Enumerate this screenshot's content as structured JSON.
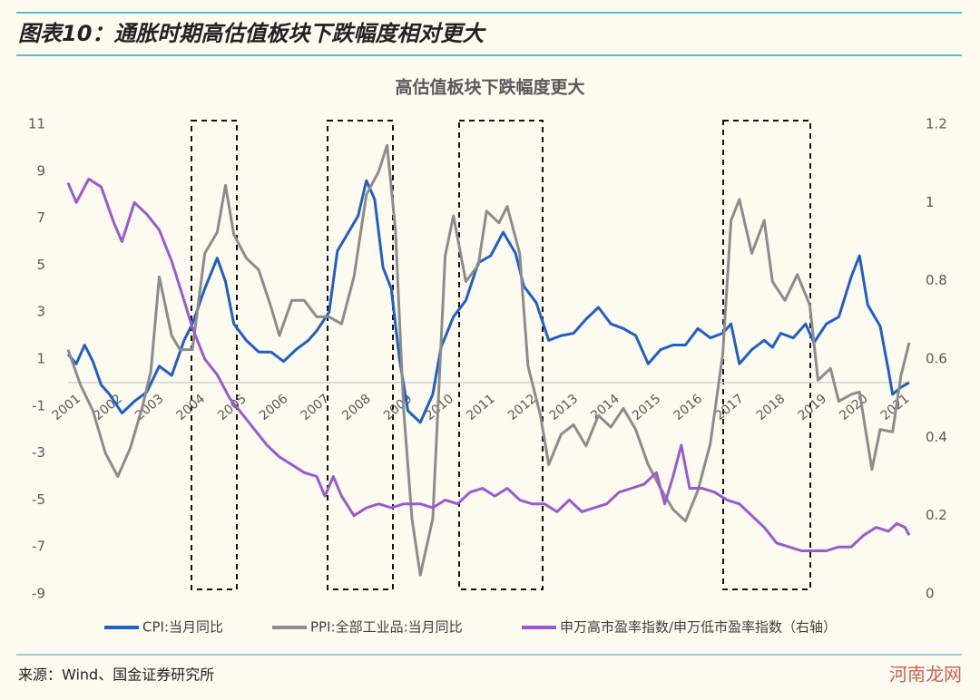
{
  "header": {
    "title": "图表10：通胀时期高估值板块下跌幅度相对更大"
  },
  "chart_data": {
    "type": "line",
    "title": "高估值板块下跌幅度更大",
    "xlim": [
      2001,
      2021.3
    ],
    "xticks": [
      2001,
      2002,
      2003,
      2004,
      2005,
      2006,
      2007,
      2008,
      2009,
      2010,
      2011,
      2012,
      2013,
      2014,
      2015,
      2016,
      2017,
      2018,
      2019,
      2020,
      2021
    ],
    "ylim": [
      -9,
      11
    ],
    "yticks": [
      11,
      9,
      7,
      5,
      3,
      1,
      -1,
      -3,
      -5,
      -7,
      -9
    ],
    "y2lim": [
      0,
      1.2
    ],
    "y2ticks": [
      1.2,
      1,
      0.8,
      0.6,
      0.4,
      0.2,
      0
    ],
    "series": [
      {
        "name": "CPI:当月同比",
        "color": "#1f5fc8",
        "x": [
          2001.0,
          2001.2,
          2001.4,
          2001.6,
          2001.8,
          2002.0,
          2002.3,
          2002.6,
          2002.9,
          2003.2,
          2003.5,
          2003.8,
          2004.0,
          2004.3,
          2004.6,
          2004.8,
          2005.0,
          2005.3,
          2005.6,
          2005.9,
          2006.2,
          2006.5,
          2006.8,
          2007.0,
          2007.3,
          2007.5,
          2007.8,
          2008.0,
          2008.2,
          2008.4,
          2008.6,
          2008.8,
          2009.0,
          2009.2,
          2009.5,
          2009.8,
          2010.0,
          2010.3,
          2010.6,
          2010.9,
          2011.2,
          2011.5,
          2011.8,
          2012.0,
          2012.3,
          2012.6,
          2012.9,
          2013.2,
          2013.5,
          2013.8,
          2014.1,
          2014.4,
          2014.7,
          2015.0,
          2015.3,
          2015.6,
          2015.9,
          2016.2,
          2016.5,
          2016.8,
          2017.0,
          2017.2,
          2017.5,
          2017.8,
          2018.0,
          2018.2,
          2018.5,
          2018.8,
          2019.0,
          2019.3,
          2019.6,
          2019.9,
          2020.1,
          2020.3,
          2020.6,
          2020.8,
          2020.9,
          2021.1,
          2021.3
        ],
        "values": [
          1.2,
          0.8,
          1.6,
          0.9,
          -0.1,
          -0.5,
          -1.3,
          -0.8,
          -0.4,
          0.7,
          0.3,
          1.8,
          2.5,
          4.0,
          5.3,
          4.3,
          2.5,
          1.8,
          1.3,
          1.3,
          0.9,
          1.4,
          1.8,
          2.2,
          3.0,
          5.6,
          6.5,
          7.1,
          8.6,
          7.8,
          4.9,
          4.0,
          1.0,
          -1.2,
          -1.7,
          -0.5,
          1.5,
          2.8,
          3.5,
          5.1,
          5.4,
          6.4,
          5.5,
          4.1,
          3.4,
          1.8,
          2.0,
          2.1,
          2.7,
          3.2,
          2.5,
          2.3,
          2.0,
          0.8,
          1.4,
          1.6,
          1.6,
          2.3,
          1.9,
          2.1,
          2.5,
          0.8,
          1.4,
          1.8,
          1.5,
          2.1,
          1.9,
          2.5,
          1.7,
          2.5,
          2.8,
          4.5,
          5.4,
          3.3,
          2.4,
          0.5,
          -0.5,
          -0.2,
          0.0
        ]
      },
      {
        "name": "PPI:全部工业品:当月同比",
        "color": "#8c8c8c",
        "x": [
          2001.0,
          2001.3,
          2001.6,
          2001.9,
          2002.2,
          2002.5,
          2002.8,
          2003.0,
          2003.2,
          2003.5,
          2003.7,
          2004.0,
          2004.3,
          2004.6,
          2004.8,
          2005.0,
          2005.3,
          2005.6,
          2005.9,
          2006.1,
          2006.4,
          2006.7,
          2007.0,
          2007.3,
          2007.6,
          2007.9,
          2008.2,
          2008.5,
          2008.7,
          2008.9,
          2009.1,
          2009.3,
          2009.5,
          2009.8,
          2010.1,
          2010.3,
          2010.6,
          2010.9,
          2011.1,
          2011.4,
          2011.6,
          2011.9,
          2012.1,
          2012.4,
          2012.6,
          2012.9,
          2013.2,
          2013.5,
          2013.8,
          2014.1,
          2014.4,
          2014.7,
          2015.0,
          2015.3,
          2015.6,
          2015.9,
          2016.2,
          2016.5,
          2016.8,
          2017.0,
          2017.2,
          2017.5,
          2017.8,
          2018.0,
          2018.3,
          2018.6,
          2018.9,
          2019.1,
          2019.4,
          2019.6,
          2019.9,
          2020.1,
          2020.4,
          2020.6,
          2020.9,
          2021.1,
          2021.3
        ],
        "values": [
          1.4,
          -0.1,
          -1.2,
          -3.0,
          -4.0,
          -2.8,
          -1.0,
          0.5,
          4.5,
          2.0,
          1.4,
          1.4,
          5.5,
          6.4,
          8.4,
          6.3,
          5.3,
          4.8,
          3.2,
          2.0,
          3.5,
          3.5,
          2.8,
          2.8,
          2.5,
          4.5,
          8.0,
          9.0,
          10.1,
          6.5,
          -1.2,
          -5.8,
          -8.2,
          -5.8,
          5.4,
          7.1,
          4.3,
          5.0,
          7.3,
          6.8,
          7.5,
          5.5,
          0.7,
          -1.4,
          -3.5,
          -2.2,
          -1.8,
          -2.7,
          -1.4,
          -1.9,
          -1.1,
          -2.0,
          -3.5,
          -4.5,
          -5.4,
          -5.9,
          -4.6,
          -2.6,
          1.2,
          6.9,
          7.8,
          5.5,
          6.9,
          4.3,
          3.5,
          4.6,
          3.3,
          0.1,
          0.6,
          -0.8,
          -0.5,
          -0.4,
          -3.7,
          -2.0,
          -2.1,
          0.3,
          1.7
        ]
      },
      {
        "name": "申万高市盈率指数/申万低市盈率指数（右轴）",
        "color": "#9b59d0",
        "axis": "y2",
        "x": [
          2001.0,
          2001.2,
          2001.5,
          2001.8,
          2002.1,
          2002.3,
          2002.6,
          2002.9,
          2003.2,
          2003.5,
          2003.8,
          2004.0,
          2004.3,
          2004.6,
          2004.9,
          2005.2,
          2005.5,
          2005.8,
          2006.1,
          2006.4,
          2006.7,
          2007.0,
          2007.2,
          2007.4,
          2007.6,
          2007.9,
          2008.2,
          2008.5,
          2008.8,
          2009.1,
          2009.5,
          2009.8,
          2010.1,
          2010.4,
          2010.7,
          2011.0,
          2011.3,
          2011.6,
          2011.9,
          2012.2,
          2012.5,
          2012.8,
          2013.1,
          2013.4,
          2013.7,
          2014.0,
          2014.3,
          2014.6,
          2014.9,
          2015.2,
          2015.4,
          2015.6,
          2015.8,
          2016.0,
          2016.3,
          2016.6,
          2016.9,
          2017.2,
          2017.5,
          2017.8,
          2018.1,
          2018.4,
          2018.7,
          2019.0,
          2019.3,
          2019.6,
          2019.9,
          2020.2,
          2020.5,
          2020.8,
          2021.0,
          2021.2,
          2021.3
        ],
        "values": [
          1.05,
          1.0,
          1.06,
          1.04,
          0.95,
          0.9,
          1.0,
          0.97,
          0.93,
          0.85,
          0.75,
          0.68,
          0.6,
          0.56,
          0.5,
          0.46,
          0.42,
          0.38,
          0.35,
          0.33,
          0.31,
          0.3,
          0.25,
          0.3,
          0.25,
          0.2,
          0.22,
          0.23,
          0.22,
          0.23,
          0.23,
          0.22,
          0.24,
          0.23,
          0.26,
          0.27,
          0.25,
          0.27,
          0.24,
          0.23,
          0.23,
          0.21,
          0.24,
          0.21,
          0.22,
          0.23,
          0.26,
          0.27,
          0.28,
          0.31,
          0.23,
          0.3,
          0.38,
          0.27,
          0.27,
          0.26,
          0.24,
          0.23,
          0.2,
          0.17,
          0.13,
          0.12,
          0.11,
          0.11,
          0.11,
          0.12,
          0.12,
          0.15,
          0.17,
          0.16,
          0.18,
          0.17,
          0.15
        ]
      }
    ]
  },
  "source": "来源：Wind、国金证券研究所",
  "watermark": "河南龙网"
}
